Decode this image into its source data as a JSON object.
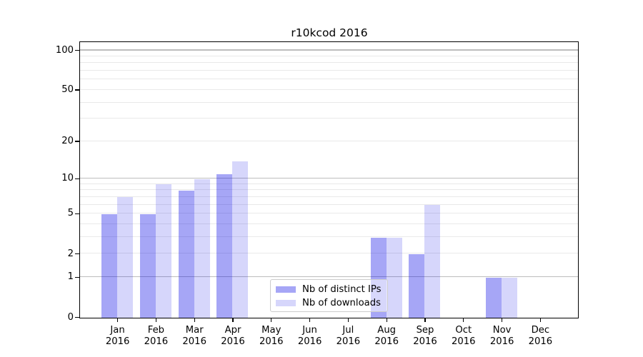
{
  "chart_data": {
    "type": "bar",
    "title": "r10kcod 2016",
    "categories": [
      "Jan",
      "Feb",
      "Mar",
      "Apr",
      "May",
      "Jun",
      "Jul",
      "Aug",
      "Sep",
      "Oct",
      "Nov",
      "Dec"
    ],
    "category_year": "2016",
    "series": [
      {
        "name": "Nb of distinct IPs",
        "values": [
          5,
          5,
          8,
          11,
          0,
          0,
          0,
          3,
          2,
          0,
          1,
          0
        ],
        "color": "rgba(0,0,230,0.35)"
      },
      {
        "name": "Nb of downloads",
        "values": [
          7,
          9,
          10,
          14,
          0,
          0,
          0,
          3,
          6,
          0,
          1,
          0
        ],
        "color": "rgba(0,0,230,0.16)"
      }
    ],
    "xlabel": "",
    "ylabel": "",
    "yscale": "log1p",
    "ylim": [
      0,
      115
    ],
    "yticks": [
      0,
      1,
      2,
      5,
      10,
      20,
      50,
      100
    ],
    "grid": {
      "on": true,
      "major": [
        1,
        10,
        100
      ],
      "minor": [
        2,
        3,
        4,
        5,
        6,
        7,
        8,
        9,
        20,
        30,
        40,
        50,
        60,
        70,
        80,
        90
      ]
    },
    "legend_position": "lower-center-right"
  }
}
